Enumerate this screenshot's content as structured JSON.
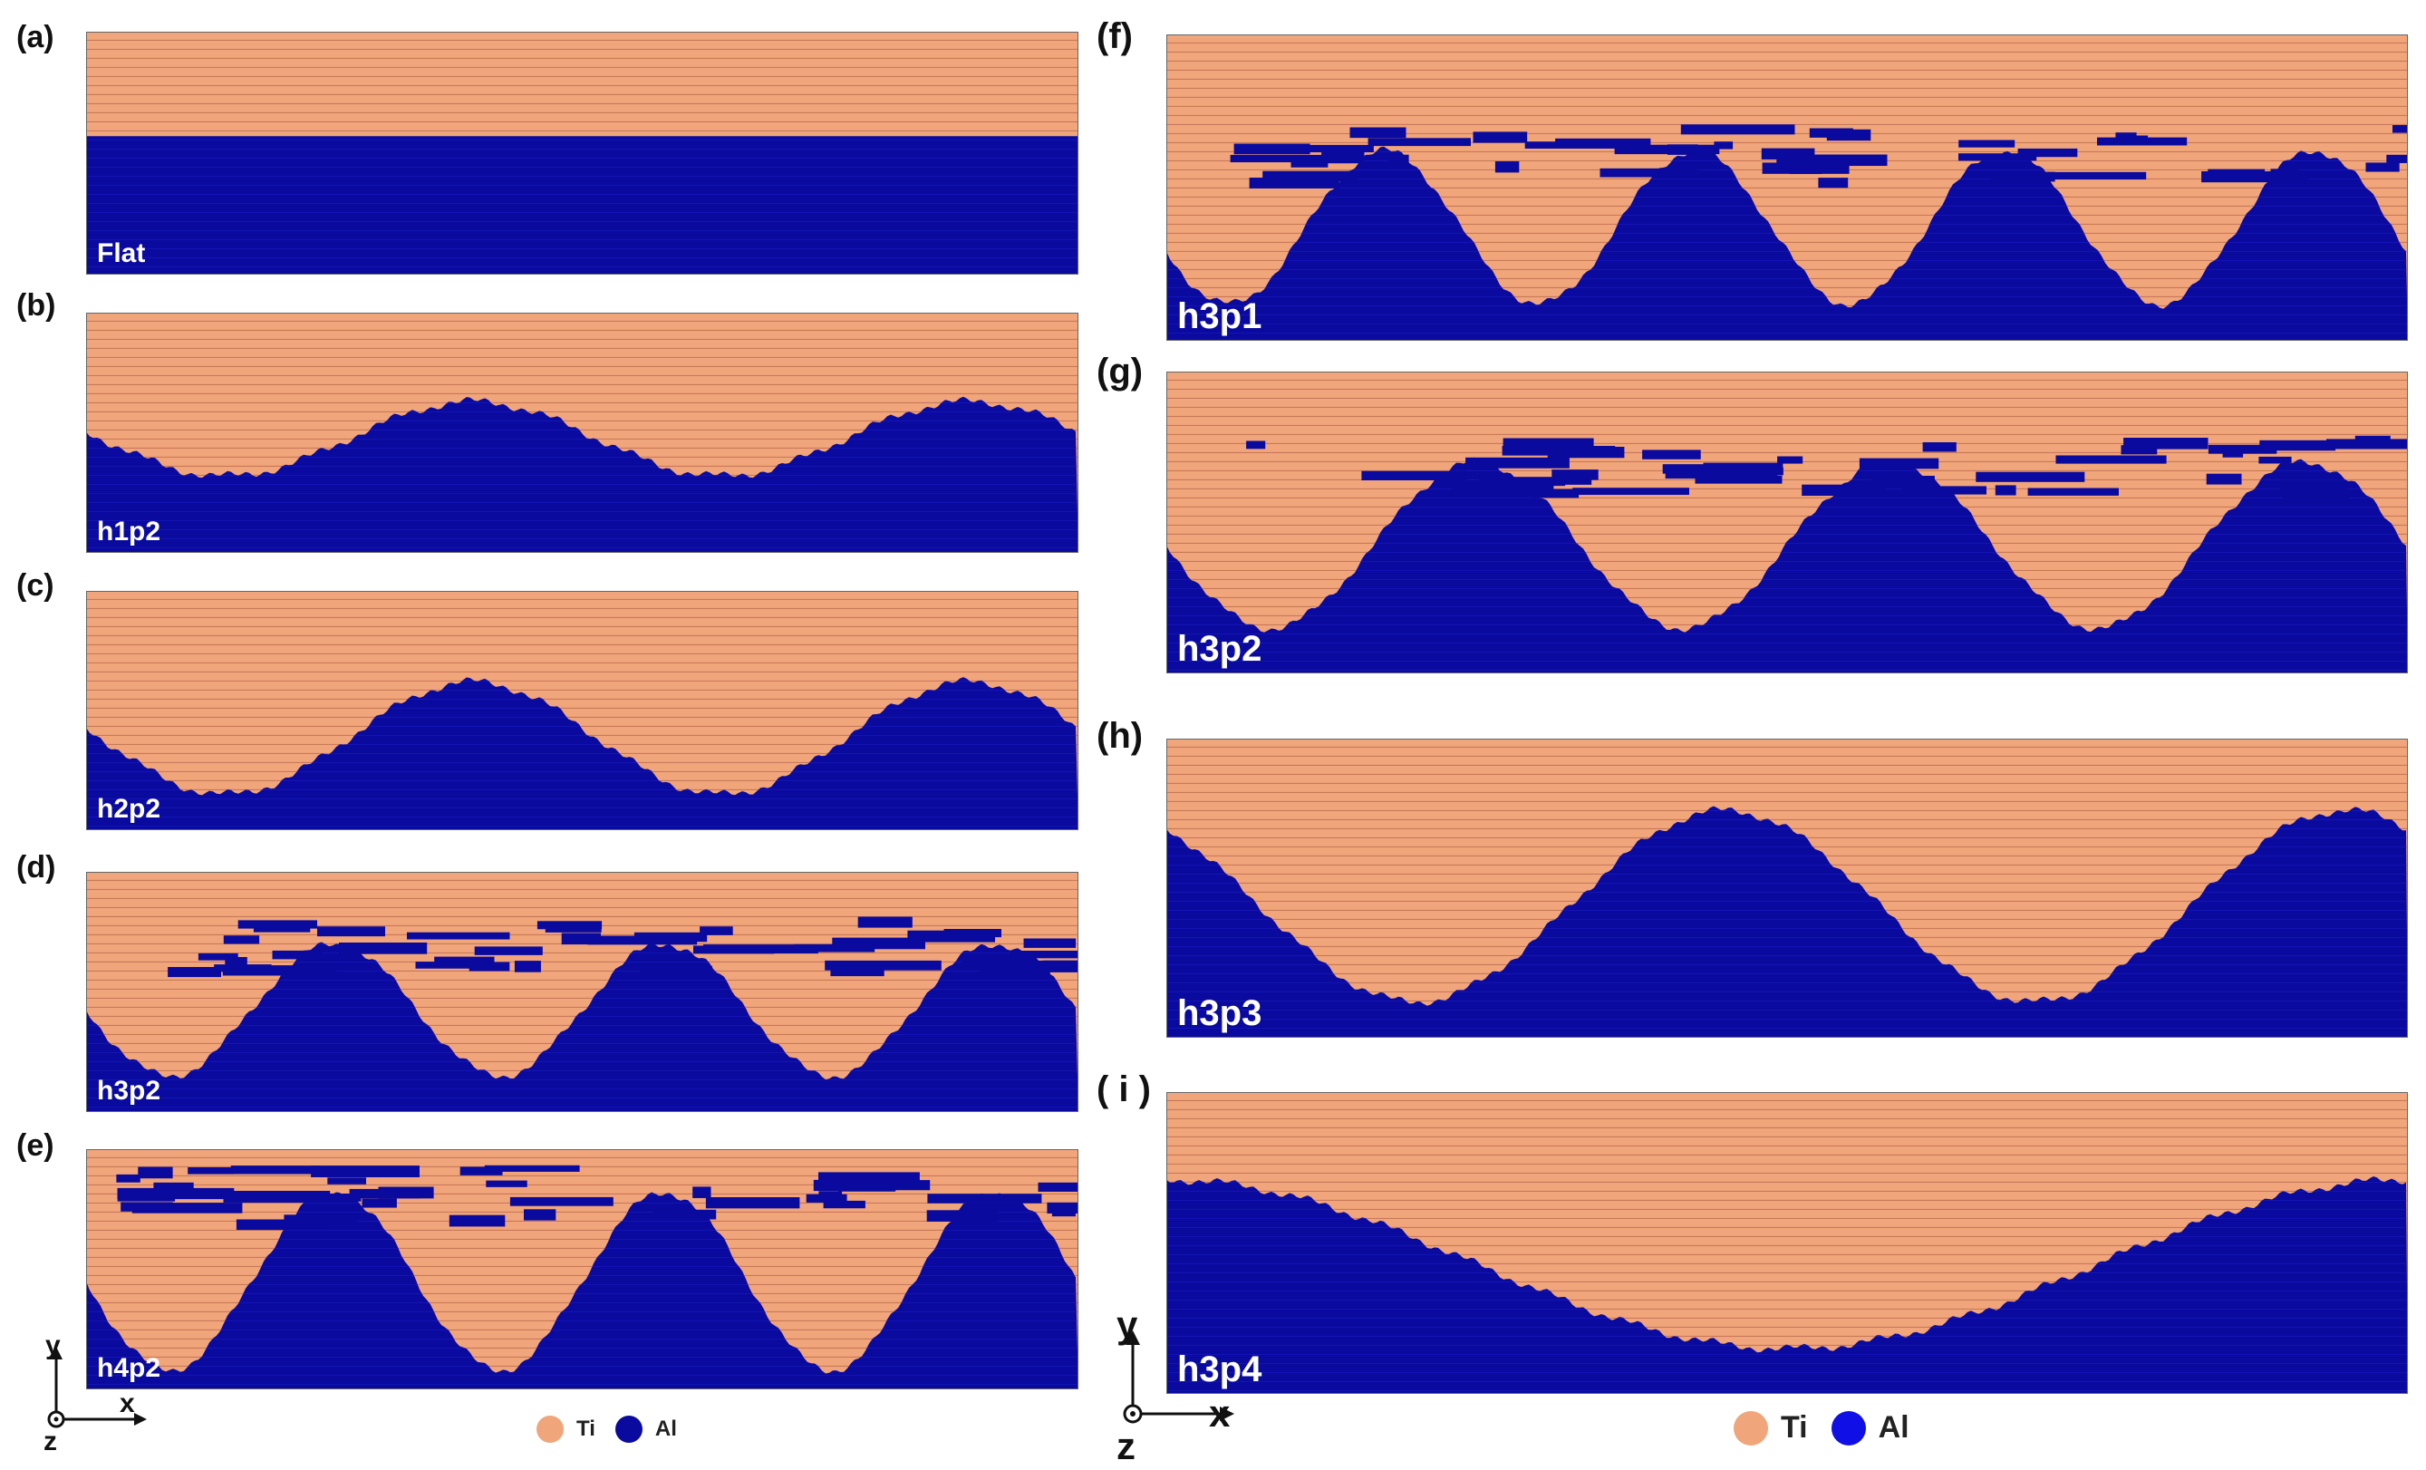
{
  "colors": {
    "ti": "#F0A57A",
    "ti_stripe": "#C8795A",
    "al": "#0A0A9E",
    "al_stripe": "#1414B4"
  },
  "panels": [
    {
      "id": "a",
      "label": "(a)",
      "tag": "Flat"
    },
    {
      "id": "b",
      "label": "(b)",
      "tag": "h1p2"
    },
    {
      "id": "c",
      "label": "(c)",
      "tag": "h2p2"
    },
    {
      "id": "d",
      "label": "(d)",
      "tag": "h3p2"
    },
    {
      "id": "e",
      "label": "(e)",
      "tag": "h4p2"
    },
    {
      "id": "f",
      "label": "(f)",
      "tag": "h3p1"
    },
    {
      "id": "g",
      "label": "(g)",
      "tag": "h3p2"
    },
    {
      "id": "h",
      "label": "(h)",
      "tag": "h3p3"
    },
    {
      "id": "i",
      "label": "( i )",
      "tag": "h3p4"
    }
  ],
  "legend": {
    "ti": "Ti",
    "al": "Al"
  },
  "axes": {
    "x": "x",
    "y": "y",
    "z": "z"
  }
}
